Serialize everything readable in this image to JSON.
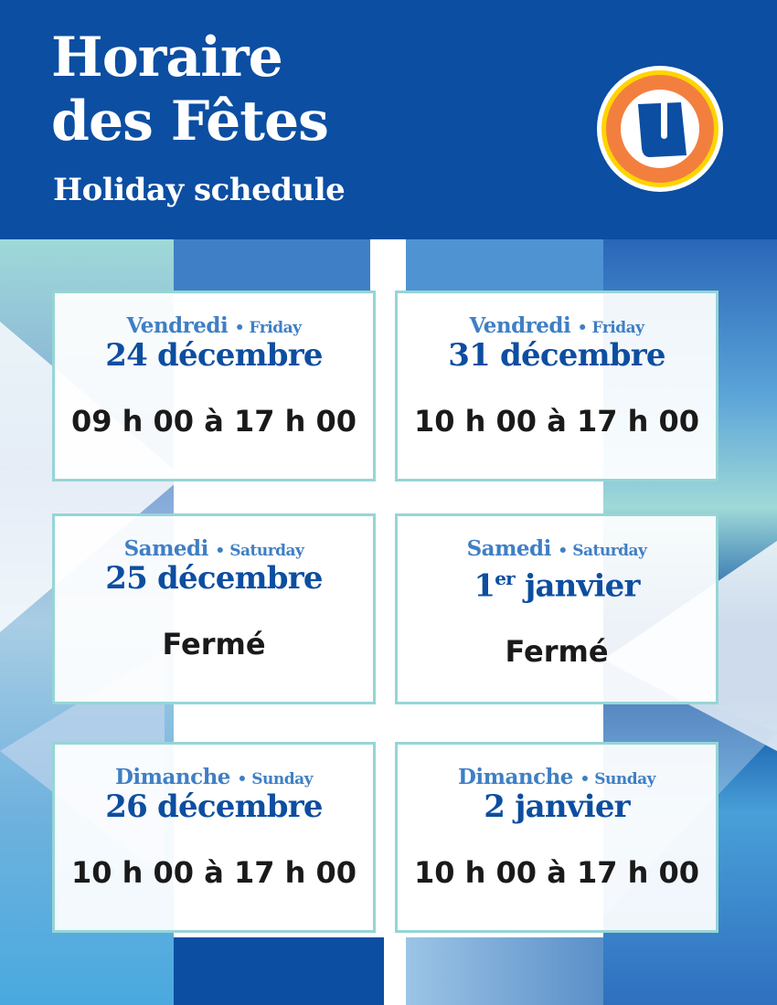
{
  "header": {
    "title_line1": "Horaire",
    "title_line2": "des Fêtes",
    "subtitle": "Holiday schedule",
    "logo": "U-circle-logo"
  },
  "colors": {
    "header_bg": "#0b4ea2",
    "day": "#3f7fc5",
    "date": "#0d4ea0",
    "border": "#96d5d6",
    "logo_orange": "#f37f3f",
    "logo_yellow": "#ffd400"
  },
  "separator": "•",
  "cards": [
    {
      "day_fr": "Vendredi",
      "day_en": "Friday",
      "date": "24 décembre",
      "hours": "09 h 00 à 17 h 00"
    },
    {
      "day_fr": "Vendredi",
      "day_en": "Friday",
      "date": "31 décembre",
      "hours": "10 h 00 à 17 h 00"
    },
    {
      "day_fr": "Samedi",
      "day_en": "Saturday",
      "date": "25 décembre",
      "hours": "Fermé"
    },
    {
      "day_fr": "Samedi",
      "day_en": "Saturday",
      "date_num": "1",
      "date_sup": "er",
      "date_rest": " janvier",
      "hours": "Fermé"
    },
    {
      "day_fr": "Dimanche",
      "day_en": "Sunday",
      "date": "26 décembre",
      "hours": "10 h 00 à 17 h 00"
    },
    {
      "day_fr": "Dimanche",
      "day_en": "Sunday",
      "date": "2 janvier",
      "hours": "10 h 00 à 17 h 00"
    }
  ]
}
